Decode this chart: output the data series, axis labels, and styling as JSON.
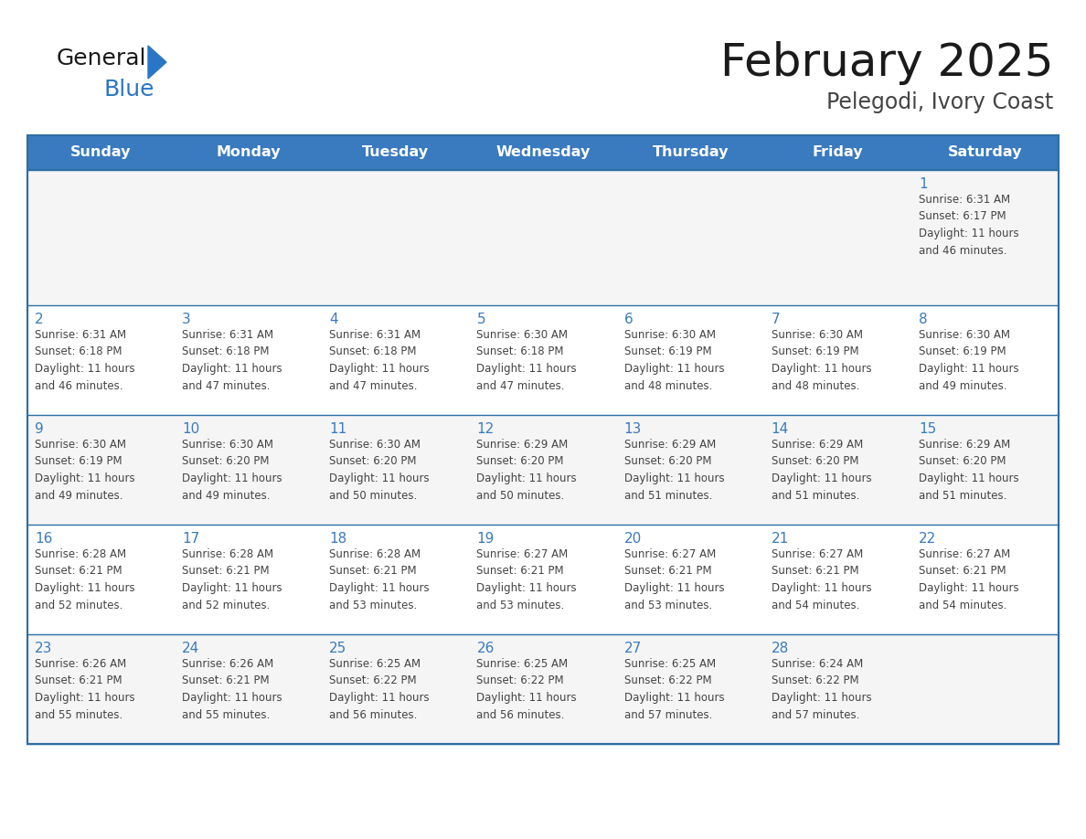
{
  "title": "February 2025",
  "subtitle": "Pelegodi, Ivory Coast",
  "days_of_week": [
    "Sunday",
    "Monday",
    "Tuesday",
    "Wednesday",
    "Thursday",
    "Friday",
    "Saturday"
  ],
  "header_bg": "#3a7abf",
  "header_text_color": "#ffffff",
  "cell_bg_row0": "#f5f5f5",
  "cell_bg_row1": "#ffffff",
  "cell_border_color": "#2e6da4",
  "day_number_color": "#3a7abf",
  "text_color": "#444444",
  "title_color": "#1a1a1a",
  "subtitle_color": "#444444",
  "general_text_color": "#1a1a1a",
  "blue_logo_color": "#2a76c6",
  "calendar_data": [
    [
      {
        "day": null,
        "info": ""
      },
      {
        "day": null,
        "info": ""
      },
      {
        "day": null,
        "info": ""
      },
      {
        "day": null,
        "info": ""
      },
      {
        "day": null,
        "info": ""
      },
      {
        "day": null,
        "info": ""
      },
      {
        "day": 1,
        "info": "Sunrise: 6:31 AM\nSunset: 6:17 PM\nDaylight: 11 hours\nand 46 minutes."
      }
    ],
    [
      {
        "day": 2,
        "info": "Sunrise: 6:31 AM\nSunset: 6:18 PM\nDaylight: 11 hours\nand 46 minutes."
      },
      {
        "day": 3,
        "info": "Sunrise: 6:31 AM\nSunset: 6:18 PM\nDaylight: 11 hours\nand 47 minutes."
      },
      {
        "day": 4,
        "info": "Sunrise: 6:31 AM\nSunset: 6:18 PM\nDaylight: 11 hours\nand 47 minutes."
      },
      {
        "day": 5,
        "info": "Sunrise: 6:30 AM\nSunset: 6:18 PM\nDaylight: 11 hours\nand 47 minutes."
      },
      {
        "day": 6,
        "info": "Sunrise: 6:30 AM\nSunset: 6:19 PM\nDaylight: 11 hours\nand 48 minutes."
      },
      {
        "day": 7,
        "info": "Sunrise: 6:30 AM\nSunset: 6:19 PM\nDaylight: 11 hours\nand 48 minutes."
      },
      {
        "day": 8,
        "info": "Sunrise: 6:30 AM\nSunset: 6:19 PM\nDaylight: 11 hours\nand 49 minutes."
      }
    ],
    [
      {
        "day": 9,
        "info": "Sunrise: 6:30 AM\nSunset: 6:19 PM\nDaylight: 11 hours\nand 49 minutes."
      },
      {
        "day": 10,
        "info": "Sunrise: 6:30 AM\nSunset: 6:20 PM\nDaylight: 11 hours\nand 49 minutes."
      },
      {
        "day": 11,
        "info": "Sunrise: 6:30 AM\nSunset: 6:20 PM\nDaylight: 11 hours\nand 50 minutes."
      },
      {
        "day": 12,
        "info": "Sunrise: 6:29 AM\nSunset: 6:20 PM\nDaylight: 11 hours\nand 50 minutes."
      },
      {
        "day": 13,
        "info": "Sunrise: 6:29 AM\nSunset: 6:20 PM\nDaylight: 11 hours\nand 51 minutes."
      },
      {
        "day": 14,
        "info": "Sunrise: 6:29 AM\nSunset: 6:20 PM\nDaylight: 11 hours\nand 51 minutes."
      },
      {
        "day": 15,
        "info": "Sunrise: 6:29 AM\nSunset: 6:20 PM\nDaylight: 11 hours\nand 51 minutes."
      }
    ],
    [
      {
        "day": 16,
        "info": "Sunrise: 6:28 AM\nSunset: 6:21 PM\nDaylight: 11 hours\nand 52 minutes."
      },
      {
        "day": 17,
        "info": "Sunrise: 6:28 AM\nSunset: 6:21 PM\nDaylight: 11 hours\nand 52 minutes."
      },
      {
        "day": 18,
        "info": "Sunrise: 6:28 AM\nSunset: 6:21 PM\nDaylight: 11 hours\nand 53 minutes."
      },
      {
        "day": 19,
        "info": "Sunrise: 6:27 AM\nSunset: 6:21 PM\nDaylight: 11 hours\nand 53 minutes."
      },
      {
        "day": 20,
        "info": "Sunrise: 6:27 AM\nSunset: 6:21 PM\nDaylight: 11 hours\nand 53 minutes."
      },
      {
        "day": 21,
        "info": "Sunrise: 6:27 AM\nSunset: 6:21 PM\nDaylight: 11 hours\nand 54 minutes."
      },
      {
        "day": 22,
        "info": "Sunrise: 6:27 AM\nSunset: 6:21 PM\nDaylight: 11 hours\nand 54 minutes."
      }
    ],
    [
      {
        "day": 23,
        "info": "Sunrise: 6:26 AM\nSunset: 6:21 PM\nDaylight: 11 hours\nand 55 minutes."
      },
      {
        "day": 24,
        "info": "Sunrise: 6:26 AM\nSunset: 6:21 PM\nDaylight: 11 hours\nand 55 minutes."
      },
      {
        "day": 25,
        "info": "Sunrise: 6:25 AM\nSunset: 6:22 PM\nDaylight: 11 hours\nand 56 minutes."
      },
      {
        "day": 26,
        "info": "Sunrise: 6:25 AM\nSunset: 6:22 PM\nDaylight: 11 hours\nand 56 minutes."
      },
      {
        "day": 27,
        "info": "Sunrise: 6:25 AM\nSunset: 6:22 PM\nDaylight: 11 hours\nand 57 minutes."
      },
      {
        "day": 28,
        "info": "Sunrise: 6:24 AM\nSunset: 6:22 PM\nDaylight: 11 hours\nand 57 minutes."
      },
      {
        "day": null,
        "info": ""
      }
    ]
  ]
}
